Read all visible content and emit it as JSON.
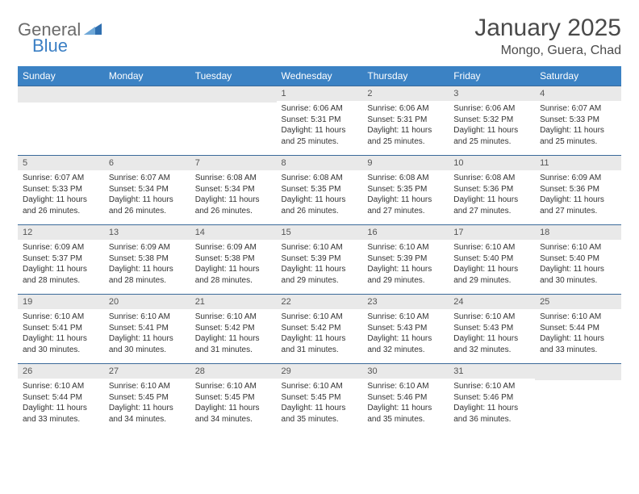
{
  "brand": {
    "text1": "General",
    "text2": "Blue",
    "logo_color": "#2f6fb0"
  },
  "title": "January 2025",
  "location": "Mongo, Guera, Chad",
  "colors": {
    "header_bg": "#3b82c4",
    "header_text": "#ffffff",
    "row_border": "#3b6a9a",
    "daynum_bg": "#e9e9e9",
    "text": "#333333"
  },
  "day_headers": [
    "Sunday",
    "Monday",
    "Tuesday",
    "Wednesday",
    "Thursday",
    "Friday",
    "Saturday"
  ],
  "weeks": [
    [
      {
        "n": "",
        "lines": []
      },
      {
        "n": "",
        "lines": []
      },
      {
        "n": "",
        "lines": []
      },
      {
        "n": "1",
        "lines": [
          "Sunrise: 6:06 AM",
          "Sunset: 5:31 PM",
          "Daylight: 11 hours",
          "and 25 minutes."
        ]
      },
      {
        "n": "2",
        "lines": [
          "Sunrise: 6:06 AM",
          "Sunset: 5:31 PM",
          "Daylight: 11 hours",
          "and 25 minutes."
        ]
      },
      {
        "n": "3",
        "lines": [
          "Sunrise: 6:06 AM",
          "Sunset: 5:32 PM",
          "Daylight: 11 hours",
          "and 25 minutes."
        ]
      },
      {
        "n": "4",
        "lines": [
          "Sunrise: 6:07 AM",
          "Sunset: 5:33 PM",
          "Daylight: 11 hours",
          "and 25 minutes."
        ]
      }
    ],
    [
      {
        "n": "5",
        "lines": [
          "Sunrise: 6:07 AM",
          "Sunset: 5:33 PM",
          "Daylight: 11 hours",
          "and 26 minutes."
        ]
      },
      {
        "n": "6",
        "lines": [
          "Sunrise: 6:07 AM",
          "Sunset: 5:34 PM",
          "Daylight: 11 hours",
          "and 26 minutes."
        ]
      },
      {
        "n": "7",
        "lines": [
          "Sunrise: 6:08 AM",
          "Sunset: 5:34 PM",
          "Daylight: 11 hours",
          "and 26 minutes."
        ]
      },
      {
        "n": "8",
        "lines": [
          "Sunrise: 6:08 AM",
          "Sunset: 5:35 PM",
          "Daylight: 11 hours",
          "and 26 minutes."
        ]
      },
      {
        "n": "9",
        "lines": [
          "Sunrise: 6:08 AM",
          "Sunset: 5:35 PM",
          "Daylight: 11 hours",
          "and 27 minutes."
        ]
      },
      {
        "n": "10",
        "lines": [
          "Sunrise: 6:08 AM",
          "Sunset: 5:36 PM",
          "Daylight: 11 hours",
          "and 27 minutes."
        ]
      },
      {
        "n": "11",
        "lines": [
          "Sunrise: 6:09 AM",
          "Sunset: 5:36 PM",
          "Daylight: 11 hours",
          "and 27 minutes."
        ]
      }
    ],
    [
      {
        "n": "12",
        "lines": [
          "Sunrise: 6:09 AM",
          "Sunset: 5:37 PM",
          "Daylight: 11 hours",
          "and 28 minutes."
        ]
      },
      {
        "n": "13",
        "lines": [
          "Sunrise: 6:09 AM",
          "Sunset: 5:38 PM",
          "Daylight: 11 hours",
          "and 28 minutes."
        ]
      },
      {
        "n": "14",
        "lines": [
          "Sunrise: 6:09 AM",
          "Sunset: 5:38 PM",
          "Daylight: 11 hours",
          "and 28 minutes."
        ]
      },
      {
        "n": "15",
        "lines": [
          "Sunrise: 6:10 AM",
          "Sunset: 5:39 PM",
          "Daylight: 11 hours",
          "and 29 minutes."
        ]
      },
      {
        "n": "16",
        "lines": [
          "Sunrise: 6:10 AM",
          "Sunset: 5:39 PM",
          "Daylight: 11 hours",
          "and 29 minutes."
        ]
      },
      {
        "n": "17",
        "lines": [
          "Sunrise: 6:10 AM",
          "Sunset: 5:40 PM",
          "Daylight: 11 hours",
          "and 29 minutes."
        ]
      },
      {
        "n": "18",
        "lines": [
          "Sunrise: 6:10 AM",
          "Sunset: 5:40 PM",
          "Daylight: 11 hours",
          "and 30 minutes."
        ]
      }
    ],
    [
      {
        "n": "19",
        "lines": [
          "Sunrise: 6:10 AM",
          "Sunset: 5:41 PM",
          "Daylight: 11 hours",
          "and 30 minutes."
        ]
      },
      {
        "n": "20",
        "lines": [
          "Sunrise: 6:10 AM",
          "Sunset: 5:41 PM",
          "Daylight: 11 hours",
          "and 30 minutes."
        ]
      },
      {
        "n": "21",
        "lines": [
          "Sunrise: 6:10 AM",
          "Sunset: 5:42 PM",
          "Daylight: 11 hours",
          "and 31 minutes."
        ]
      },
      {
        "n": "22",
        "lines": [
          "Sunrise: 6:10 AM",
          "Sunset: 5:42 PM",
          "Daylight: 11 hours",
          "and 31 minutes."
        ]
      },
      {
        "n": "23",
        "lines": [
          "Sunrise: 6:10 AM",
          "Sunset: 5:43 PM",
          "Daylight: 11 hours",
          "and 32 minutes."
        ]
      },
      {
        "n": "24",
        "lines": [
          "Sunrise: 6:10 AM",
          "Sunset: 5:43 PM",
          "Daylight: 11 hours",
          "and 32 minutes."
        ]
      },
      {
        "n": "25",
        "lines": [
          "Sunrise: 6:10 AM",
          "Sunset: 5:44 PM",
          "Daylight: 11 hours",
          "and 33 minutes."
        ]
      }
    ],
    [
      {
        "n": "26",
        "lines": [
          "Sunrise: 6:10 AM",
          "Sunset: 5:44 PM",
          "Daylight: 11 hours",
          "and 33 minutes."
        ]
      },
      {
        "n": "27",
        "lines": [
          "Sunrise: 6:10 AM",
          "Sunset: 5:45 PM",
          "Daylight: 11 hours",
          "and 34 minutes."
        ]
      },
      {
        "n": "28",
        "lines": [
          "Sunrise: 6:10 AM",
          "Sunset: 5:45 PM",
          "Daylight: 11 hours",
          "and 34 minutes."
        ]
      },
      {
        "n": "29",
        "lines": [
          "Sunrise: 6:10 AM",
          "Sunset: 5:45 PM",
          "Daylight: 11 hours",
          "and 35 minutes."
        ]
      },
      {
        "n": "30",
        "lines": [
          "Sunrise: 6:10 AM",
          "Sunset: 5:46 PM",
          "Daylight: 11 hours",
          "and 35 minutes."
        ]
      },
      {
        "n": "31",
        "lines": [
          "Sunrise: 6:10 AM",
          "Sunset: 5:46 PM",
          "Daylight: 11 hours",
          "and 36 minutes."
        ]
      },
      {
        "n": "",
        "lines": []
      }
    ]
  ]
}
